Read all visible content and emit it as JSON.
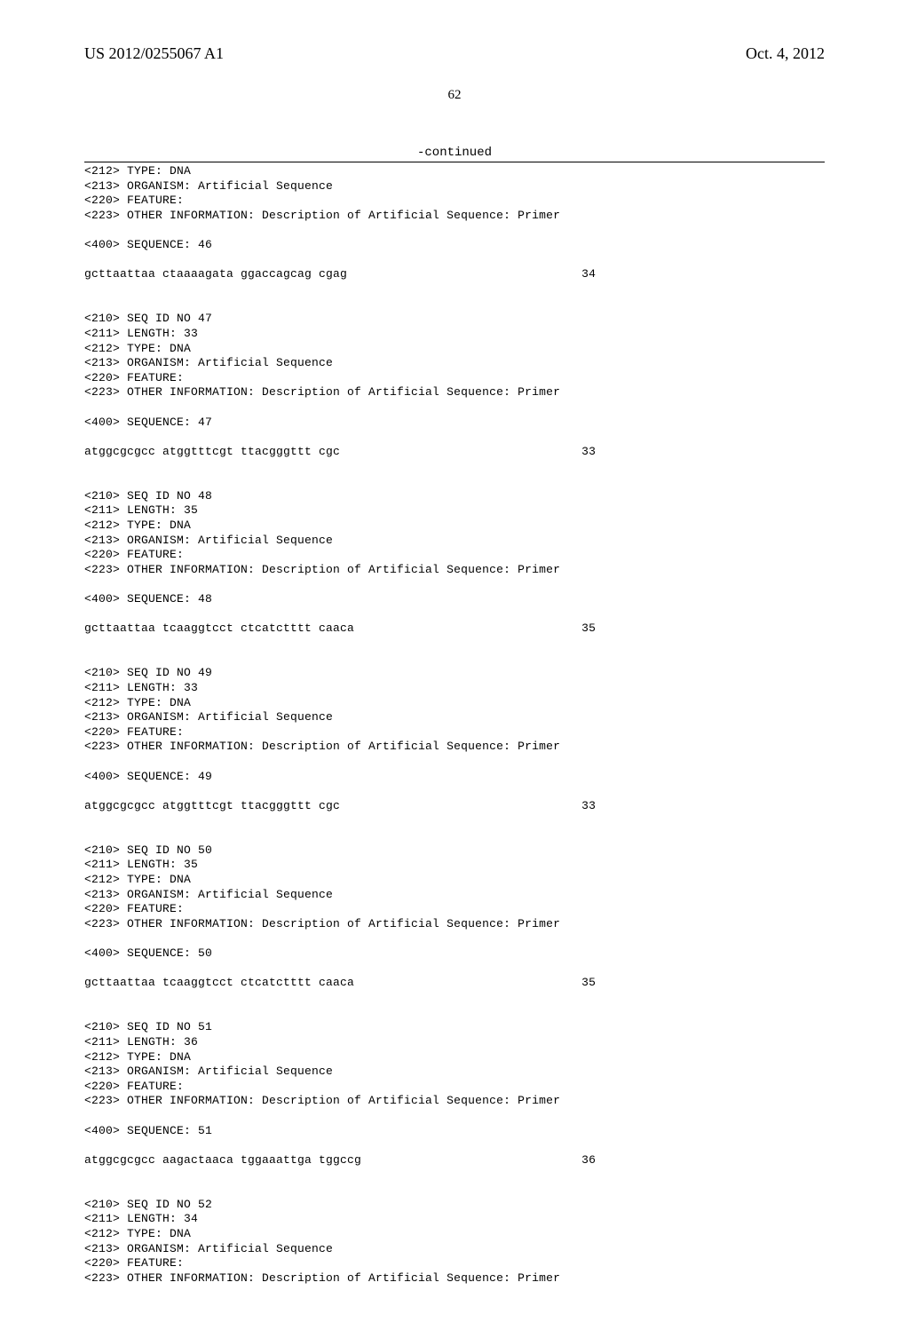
{
  "header": {
    "publication_number": "US 2012/0255067 A1",
    "publication_date": "Oct. 4, 2012"
  },
  "page_number": "62",
  "continued_label": "-continued",
  "entries": [
    {
      "meta": [
        "<212> TYPE: DNA",
        "<213> ORGANISM: Artificial Sequence",
        "<220> FEATURE:",
        "<223> OTHER INFORMATION: Description of Artificial Sequence: Primer"
      ],
      "seq_header": "<400> SEQUENCE: 46",
      "sequence": "gcttaattaa ctaaaagata ggaccagcag cgag",
      "length": "34"
    },
    {
      "meta": [
        "<210> SEQ ID NO 47",
        "<211> LENGTH: 33",
        "<212> TYPE: DNA",
        "<213> ORGANISM: Artificial Sequence",
        "<220> FEATURE:",
        "<223> OTHER INFORMATION: Description of Artificial Sequence: Primer"
      ],
      "seq_header": "<400> SEQUENCE: 47",
      "sequence": "atggcgcgcc atggtttcgt ttacgggttt cgc",
      "length": "33"
    },
    {
      "meta": [
        "<210> SEQ ID NO 48",
        "<211> LENGTH: 35",
        "<212> TYPE: DNA",
        "<213> ORGANISM: Artificial Sequence",
        "<220> FEATURE:",
        "<223> OTHER INFORMATION: Description of Artificial Sequence: Primer"
      ],
      "seq_header": "<400> SEQUENCE: 48",
      "sequence": "gcttaattaa tcaaggtcct ctcatctttt caaca",
      "length": "35"
    },
    {
      "meta": [
        "<210> SEQ ID NO 49",
        "<211> LENGTH: 33",
        "<212> TYPE: DNA",
        "<213> ORGANISM: Artificial Sequence",
        "<220> FEATURE:",
        "<223> OTHER INFORMATION: Description of Artificial Sequence: Primer"
      ],
      "seq_header": "<400> SEQUENCE: 49",
      "sequence": "atggcgcgcc atggtttcgt ttacgggttt cgc",
      "length": "33"
    },
    {
      "meta": [
        "<210> SEQ ID NO 50",
        "<211> LENGTH: 35",
        "<212> TYPE: DNA",
        "<213> ORGANISM: Artificial Sequence",
        "<220> FEATURE:",
        "<223> OTHER INFORMATION: Description of Artificial Sequence: Primer"
      ],
      "seq_header": "<400> SEQUENCE: 50",
      "sequence": "gcttaattaa tcaaggtcct ctcatctttt caaca",
      "length": "35"
    },
    {
      "meta": [
        "<210> SEQ ID NO 51",
        "<211> LENGTH: 36",
        "<212> TYPE: DNA",
        "<213> ORGANISM: Artificial Sequence",
        "<220> FEATURE:",
        "<223> OTHER INFORMATION: Description of Artificial Sequence: Primer"
      ],
      "seq_header": "<400> SEQUENCE: 51",
      "sequence": "atggcgcgcc aagactaaca tggaaattga tggccg",
      "length": "36"
    },
    {
      "meta": [
        "<210> SEQ ID NO 52",
        "<211> LENGTH: 34",
        "<212> TYPE: DNA",
        "<213> ORGANISM: Artificial Sequence",
        "<220> FEATURE:",
        "<223> OTHER INFORMATION: Description of Artificial Sequence: Primer"
      ],
      "seq_header": "",
      "sequence": "",
      "length": ""
    }
  ]
}
